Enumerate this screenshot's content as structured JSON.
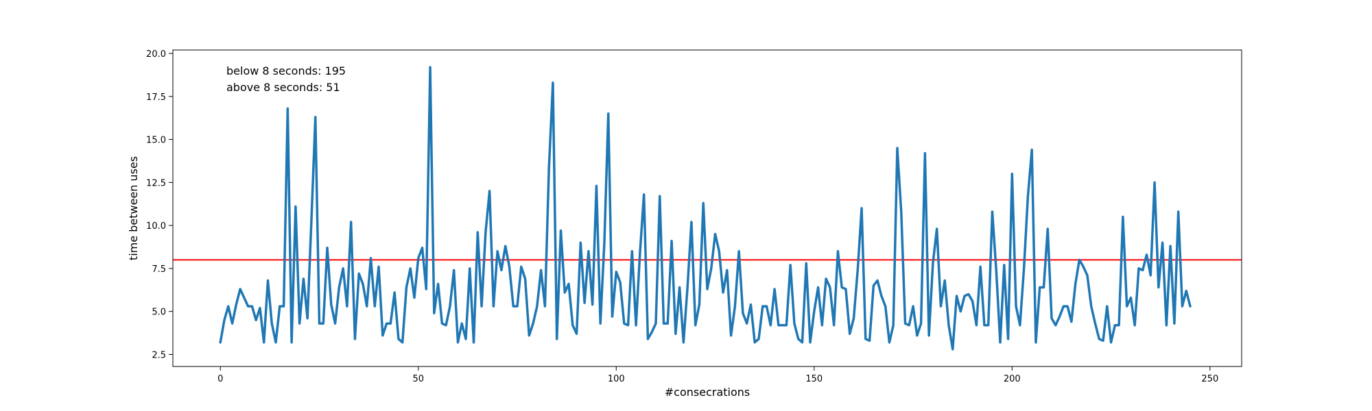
{
  "chart_data": {
    "type": "line",
    "title": "",
    "xlabel": "#consecrations",
    "ylabel": "time between uses",
    "xlim": [
      -12,
      258
    ],
    "ylim": [
      1.8,
      20.2
    ],
    "xticks": [
      0,
      50,
      100,
      150,
      200,
      250
    ],
    "xtick_labels": [
      "0",
      "50",
      "100",
      "150",
      "200",
      "250"
    ],
    "yticks": [
      2.5,
      5.0,
      7.5,
      10.0,
      12.5,
      15.0,
      17.5,
      20.0
    ],
    "ytick_labels": [
      "2.5",
      "5.0",
      "7.5",
      "10.0",
      "12.5",
      "15.0",
      "17.5",
      "20.0"
    ],
    "grid": false,
    "series": [
      {
        "color": "#1f77b4",
        "x": [
          0,
          1,
          2,
          3,
          4,
          5,
          6,
          7,
          8,
          9,
          10,
          11,
          12,
          13,
          14,
          15,
          16,
          17,
          18,
          19,
          20,
          21,
          22,
          23,
          24,
          25,
          26,
          27,
          28,
          29,
          30,
          31,
          32,
          33,
          34,
          35,
          36,
          37,
          38,
          39,
          40,
          41,
          42,
          43,
          44,
          45,
          46,
          47,
          48,
          49,
          50,
          51,
          52,
          53,
          54,
          55,
          56,
          57,
          58,
          59,
          60,
          61,
          62,
          63,
          64,
          65,
          66,
          67,
          68,
          69,
          70,
          71,
          72,
          73,
          74,
          75,
          76,
          77,
          78,
          79,
          80,
          81,
          82,
          83,
          84,
          85,
          86,
          87,
          88,
          89,
          90,
          91,
          92,
          93,
          94,
          95,
          96,
          97,
          98,
          99,
          100,
          101,
          102,
          103,
          104,
          105,
          106,
          107,
          108,
          109,
          110,
          111,
          112,
          113,
          114,
          115,
          116,
          117,
          118,
          119,
          120,
          121,
          122,
          123,
          124,
          125,
          126,
          127,
          128,
          129,
          130,
          131,
          132,
          133,
          134,
          135,
          136,
          137,
          138,
          139,
          140,
          141,
          142,
          143,
          144,
          145,
          146,
          147,
          148,
          149,
          150,
          151,
          152,
          153,
          154,
          155,
          156,
          157,
          158,
          159,
          160,
          161,
          162,
          163,
          164,
          165,
          166,
          167,
          168,
          169,
          170,
          171,
          172,
          173,
          174,
          175,
          176,
          177,
          178,
          179,
          180,
          181,
          182,
          183,
          184,
          185,
          186,
          187,
          188,
          189,
          190,
          191,
          192,
          193,
          194,
          195,
          196,
          197,
          198,
          199,
          200,
          201,
          202,
          203,
          204,
          205,
          206,
          207,
          208,
          209,
          210,
          211,
          212,
          213,
          214,
          215,
          216,
          217,
          218,
          219,
          220,
          221,
          222,
          223,
          224,
          225,
          226,
          227,
          228,
          229,
          230,
          231,
          232,
          233,
          234,
          235,
          236,
          237,
          238,
          239,
          240,
          241,
          242,
          243,
          244,
          245
        ],
        "y": [
          3.2,
          4.5,
          5.3,
          4.3,
          5.4,
          6.3,
          5.8,
          5.3,
          5.3,
          4.5,
          5.2,
          3.2,
          6.8,
          4.3,
          3.2,
          5.3,
          5.3,
          16.8,
          3.2,
          11.1,
          4.3,
          6.9,
          4.6,
          10.3,
          16.3,
          4.3,
          4.3,
          8.7,
          5.4,
          4.3,
          6.4,
          7.5,
          5.3,
          10.2,
          3.4,
          7.2,
          6.6,
          5.3,
          8.1,
          5.3,
          7.6,
          3.6,
          4.3,
          4.3,
          6.1,
          3.4,
          3.2,
          6.4,
          7.5,
          5.8,
          8.1,
          8.7,
          6.3,
          19.2,
          4.9,
          6.6,
          4.3,
          4.2,
          5.3,
          7.4,
          3.2,
          4.3,
          3.4,
          7.5,
          3.2,
          9.6,
          5.3,
          9.6,
          12.0,
          5.3,
          8.5,
          7.4,
          8.8,
          7.6,
          5.3,
          5.3,
          7.6,
          6.9,
          3.6,
          4.3,
          5.3,
          7.4,
          5.3,
          13.3,
          18.3,
          3.4,
          9.7,
          6.1,
          6.6,
          4.2,
          3.7,
          9.0,
          5.5,
          8.5,
          5.4,
          12.3,
          4.3,
          9.0,
          16.5,
          4.7,
          7.3,
          6.7,
          4.3,
          4.2,
          8.5,
          4.2,
          8.4,
          11.8,
          3.4,
          3.8,
          4.3,
          11.7,
          4.3,
          4.3,
          9.1,
          3.7,
          6.4,
          3.2,
          6.4,
          10.2,
          4.2,
          5.4,
          11.3,
          6.3,
          7.5,
          9.5,
          8.5,
          6.1,
          7.4,
          3.6,
          5.3,
          8.5,
          4.9,
          4.3,
          5.4,
          3.2,
          3.4,
          5.3,
          5.3,
          4.2,
          6.3,
          4.2,
          4.2,
          4.2,
          7.7,
          4.3,
          3.4,
          3.2,
          7.8,
          3.2,
          5.0,
          6.4,
          4.2,
          6.9,
          6.4,
          4.2,
          8.5,
          6.4,
          6.3,
          3.7,
          4.6,
          7.4,
          11.0,
          3.4,
          3.3,
          6.5,
          6.8,
          5.9,
          5.3,
          3.2,
          4.2,
          14.5,
          10.8,
          4.3,
          4.2,
          5.3,
          3.6,
          4.3,
          14.2,
          3.6,
          7.8,
          9.8,
          5.3,
          6.8,
          4.2,
          2.8,
          5.9,
          5.0,
          5.9,
          6.0,
          5.6,
          4.2,
          7.6,
          4.2,
          4.2,
          10.8,
          7.4,
          3.2,
          7.7,
          3.4,
          13.0,
          5.3,
          4.2,
          7.5,
          11.7,
          14.4,
          3.2,
          6.4,
          6.4,
          9.8,
          4.6,
          4.2,
          4.7,
          5.3,
          5.3,
          4.4,
          6.6,
          8.0,
          7.6,
          7.1,
          5.3,
          4.3,
          3.4,
          3.3,
          5.3,
          3.2,
          4.2,
          4.2,
          10.5,
          5.3,
          5.8,
          4.2,
          7.5,
          7.4,
          8.3,
          7.1,
          12.5,
          6.4,
          9.0,
          4.2,
          8.8,
          4.3,
          10.8,
          5.3,
          6.2,
          5.3
        ]
      }
    ],
    "reference_lines": [
      {
        "orientation": "horizontal",
        "y": 8.0,
        "color": "#ff0000"
      }
    ],
    "annotations": {
      "line1": "below 8 seconds: 195",
      "line2": "above 8 seconds: 51"
    }
  }
}
